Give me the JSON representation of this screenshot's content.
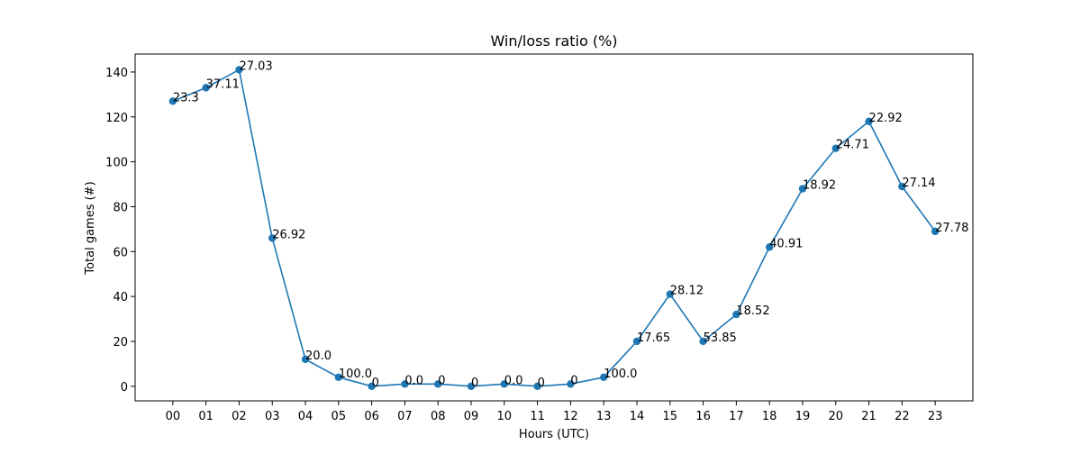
{
  "chart_data": {
    "type": "line",
    "title": "Win/loss ratio (%)",
    "xlabel": "Hours (UTC)",
    "ylabel": "Total games (#)",
    "categories": [
      "00",
      "01",
      "02",
      "03",
      "04",
      "05",
      "06",
      "07",
      "08",
      "09",
      "10",
      "11",
      "12",
      "13",
      "14",
      "15",
      "16",
      "17",
      "18",
      "19",
      "20",
      "21",
      "22",
      "23"
    ],
    "values": [
      127,
      133,
      141,
      66,
      12,
      4,
      0,
      1,
      1,
      0,
      1,
      0,
      1,
      4,
      20,
      41,
      20,
      32,
      62,
      88,
      106,
      118,
      89,
      69
    ],
    "point_labels": [
      "23.3",
      "37.11",
      "27.03",
      "26.92",
      "20.0",
      "100.0",
      "0",
      "0.0",
      "0",
      "0",
      "0.0",
      "0",
      "0",
      "100.0",
      "17.65",
      "28.12",
      "53.85",
      "18.52",
      "40.91",
      "18.92",
      "24.71",
      "22.92",
      "27.14",
      "27.78"
    ],
    "yticks": [
      0,
      20,
      40,
      60,
      80,
      100,
      120,
      140
    ],
    "ylim": [
      -6.5,
      148
    ],
    "grid": false,
    "series_color": "#1f77b4"
  }
}
